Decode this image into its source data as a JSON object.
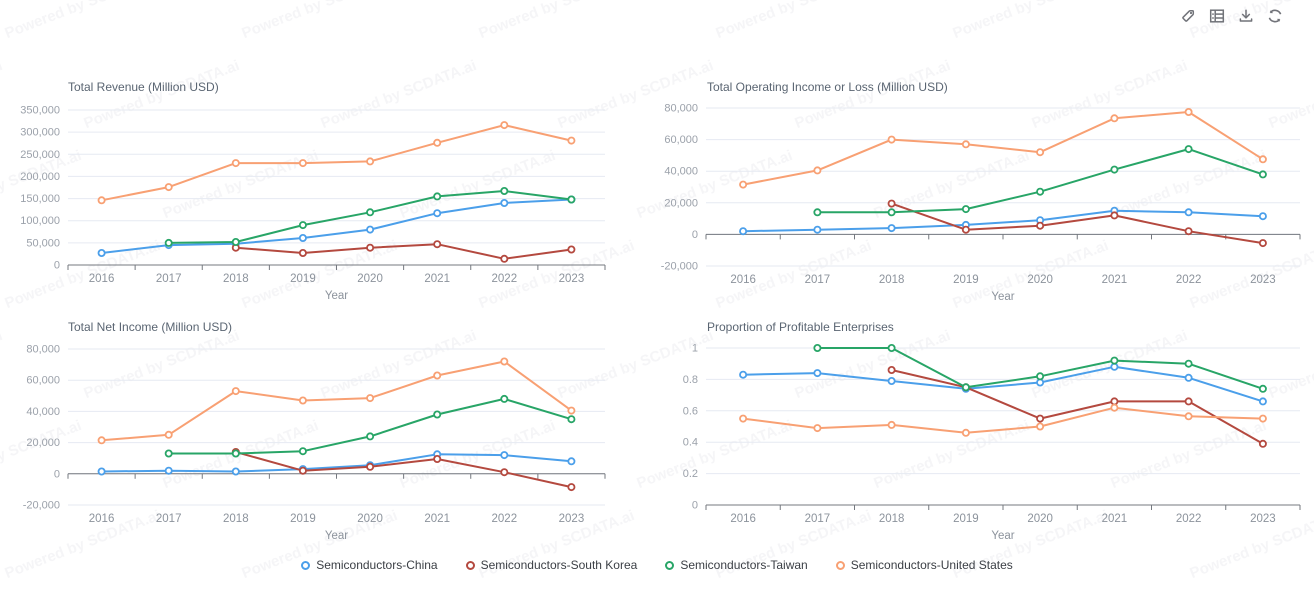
{
  "watermark": {
    "text": "Powered by SCDATA.ai"
  },
  "toolbar": {
    "icons": [
      {
        "name": "tag-icon"
      },
      {
        "name": "data-table-icon"
      },
      {
        "name": "download-icon"
      },
      {
        "name": "refresh-icon"
      }
    ]
  },
  "colors": {
    "china": "#4B9FEA",
    "south_korea": "#B4493F",
    "taiwan": "#28A567",
    "united_states": "#F8A073",
    "grid": "#E6EAF2",
    "axis": "#74787F",
    "tick_label": "#9BA1AA",
    "category_label": "#8C939C",
    "title": "#5A6572",
    "icon": "#717379"
  },
  "x_label": "Year",
  "categories": [
    "2016",
    "2017",
    "2018",
    "2019",
    "2020",
    "2021",
    "2022",
    "2023"
  ],
  "legend": [
    {
      "label": "Semiconductors-China",
      "key": "china"
    },
    {
      "label": "Semiconductors-South Korea",
      "key": "south_korea"
    },
    {
      "label": "Semiconductors-Taiwan",
      "key": "taiwan"
    },
    {
      "label": "Semiconductors-United States",
      "key": "united_states"
    }
  ],
  "chart_data": [
    {
      "type": "line",
      "title": "Total Revenue (Million USD)",
      "xlabel": "Year",
      "categories": [
        "2016",
        "2017",
        "2018",
        "2019",
        "2020",
        "2021",
        "2022",
        "2023"
      ],
      "ylim": [
        0,
        350000
      ],
      "ytick_step": 50000,
      "decimals": false,
      "grid": true,
      "legend_position": "bottom",
      "series": [
        {
          "name": "Semiconductors-China",
          "key": "china",
          "values": [
            27000,
            45000,
            48000,
            61000,
            80000,
            117000,
            140000,
            148000
          ]
        },
        {
          "name": "Semiconductors-South Korea",
          "key": "south_korea",
          "values": [
            null,
            null,
            39000,
            27000,
            39000,
            47000,
            14000,
            35000
          ]
        },
        {
          "name": "Semiconductors-Taiwan",
          "key": "taiwan",
          "values": [
            null,
            50000,
            52000,
            90000,
            119000,
            155000,
            167000,
            148000
          ]
        },
        {
          "name": "Semiconductors-United States",
          "key": "united_states",
          "values": [
            146000,
            176000,
            230000,
            230000,
            234000,
            276000,
            316000,
            281000
          ]
        }
      ]
    },
    {
      "type": "line",
      "title": "Total Operating Income or Loss (Million USD)",
      "xlabel": "Year",
      "categories": [
        "2016",
        "2017",
        "2018",
        "2019",
        "2020",
        "2021",
        "2022",
        "2023"
      ],
      "ylim": [
        -20000,
        80000
      ],
      "ytick_step": 20000,
      "decimals": false,
      "grid": true,
      "legend_position": "bottom",
      "series": [
        {
          "name": "Semiconductors-China",
          "key": "china",
          "values": [
            2000,
            3000,
            4000,
            6000,
            9000,
            15000,
            14000,
            11500
          ]
        },
        {
          "name": "Semiconductors-South Korea",
          "key": "south_korea",
          "values": [
            null,
            null,
            19500,
            3000,
            5500,
            12000,
            2000,
            -5500
          ]
        },
        {
          "name": "Semiconductors-Taiwan",
          "key": "taiwan",
          "values": [
            null,
            14000,
            14000,
            16000,
            27000,
            41000,
            54000,
            38000
          ]
        },
        {
          "name": "Semiconductors-United States",
          "key": "united_states",
          "values": [
            31500,
            40500,
            60000,
            57000,
            52000,
            73500,
            77500,
            47500
          ]
        }
      ]
    },
    {
      "type": "line",
      "title": "Total Net Income (Million USD)",
      "xlabel": "Year",
      "categories": [
        "2016",
        "2017",
        "2018",
        "2019",
        "2020",
        "2021",
        "2022",
        "2023"
      ],
      "ylim": [
        -20000,
        80000
      ],
      "ytick_step": 20000,
      "decimals": false,
      "grid": true,
      "legend_position": "bottom",
      "series": [
        {
          "name": "Semiconductors-China",
          "key": "china",
          "values": [
            1500,
            2000,
            1500,
            3000,
            5500,
            12500,
            12000,
            8000
          ]
        },
        {
          "name": "Semiconductors-South Korea",
          "key": "south_korea",
          "values": [
            null,
            null,
            14000,
            2000,
            4500,
            9500,
            1000,
            -8500
          ]
        },
        {
          "name": "Semiconductors-Taiwan",
          "key": "taiwan",
          "values": [
            null,
            13000,
            13000,
            14500,
            24000,
            38000,
            48000,
            35000
          ]
        },
        {
          "name": "Semiconductors-United States",
          "key": "united_states",
          "values": [
            21500,
            25000,
            53000,
            47000,
            48500,
            63000,
            72000,
            40500
          ]
        }
      ]
    },
    {
      "type": "line",
      "title": "Proportion of Profitable Enterprises",
      "xlabel": "Year",
      "categories": [
        "2016",
        "2017",
        "2018",
        "2019",
        "2020",
        "2021",
        "2022",
        "2023"
      ],
      "ylim": [
        0,
        1
      ],
      "ytick_step": 0.2,
      "decimals": true,
      "grid": true,
      "legend_position": "bottom",
      "series": [
        {
          "name": "Semiconductors-China",
          "key": "china",
          "values": [
            0.83,
            0.84,
            0.79,
            0.74,
            0.78,
            0.88,
            0.81,
            0.66
          ]
        },
        {
          "name": "Semiconductors-South Korea",
          "key": "south_korea",
          "values": [
            null,
            null,
            0.86,
            0.75,
            0.55,
            0.66,
            0.66,
            0.39
          ]
        },
        {
          "name": "Semiconductors-Taiwan",
          "key": "taiwan",
          "values": [
            null,
            1.0,
            1.0,
            0.75,
            0.82,
            0.92,
            0.9,
            0.74
          ]
        },
        {
          "name": "Semiconductors-United States",
          "key": "united_states",
          "values": [
            0.55,
            0.49,
            0.51,
            0.46,
            0.5,
            0.62,
            0.565,
            0.55
          ]
        }
      ]
    }
  ]
}
